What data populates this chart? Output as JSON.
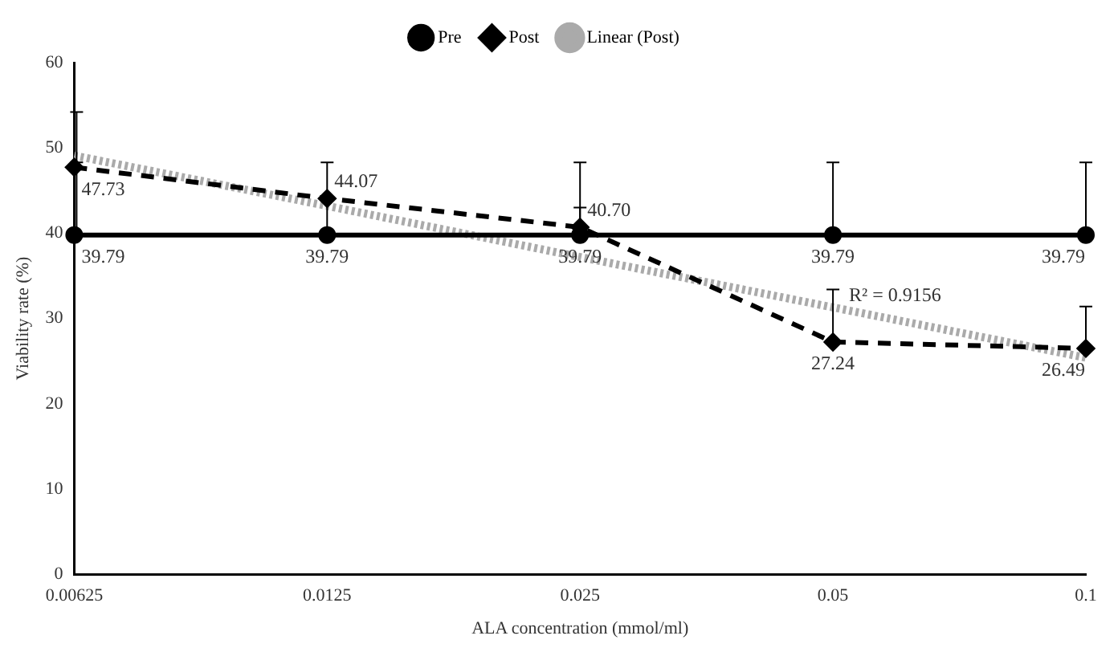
{
  "chart_data": {
    "type": "line",
    "xlabel": "ALA concentration (mmol/ml)",
    "ylabel": "Viability rate (%)",
    "categories": [
      "0.00625",
      "0.0125",
      "0.025",
      "0.05",
      "0.1"
    ],
    "series": [
      {
        "name": "Pre",
        "color": "#000000",
        "values": [
          39.79,
          39.79,
          39.79,
          39.79,
          39.79
        ],
        "marker": "circle",
        "line_style": "solid",
        "errors": [
          [
            39.79,
            48.3
          ],
          [
            39.79,
            48.3
          ],
          [
            39.79,
            48.3
          ],
          [
            39.79,
            48.3
          ],
          [
            39.79,
            48.3
          ]
        ],
        "value_labels": [
          "39.79",
          "39.79",
          "39.79",
          "39.79",
          "39.79"
        ]
      },
      {
        "name": "Post",
        "color": "#000000",
        "values": [
          47.73,
          44.07,
          40.7,
          27.24,
          26.49
        ],
        "marker": "diamond",
        "line_style": "dashed",
        "errors": [
          [
            47.73,
            54.2
          ],
          null,
          [
            40.7,
            43.0
          ],
          [
            27.24,
            33.4
          ],
          [
            26.49,
            31.4
          ]
        ],
        "value_labels": [
          "47.73",
          "44.07",
          "40.70",
          "27.24",
          "26.49"
        ]
      },
      {
        "name": "Linear (Post)",
        "color": "#aaaaaa",
        "values": [
          49.1,
          43.2,
          37.2,
          31.3,
          25.4
        ],
        "marker": "none",
        "line_style": "dotted"
      }
    ],
    "ylim": [
      0,
      60
    ],
    "yticks": [
      0,
      10,
      20,
      30,
      40,
      50,
      60
    ],
    "grid": false,
    "legend": "top",
    "annotations": [
      {
        "text": "R² = 0.9156",
        "x": "0.05",
        "y": 31.5
      }
    ]
  }
}
